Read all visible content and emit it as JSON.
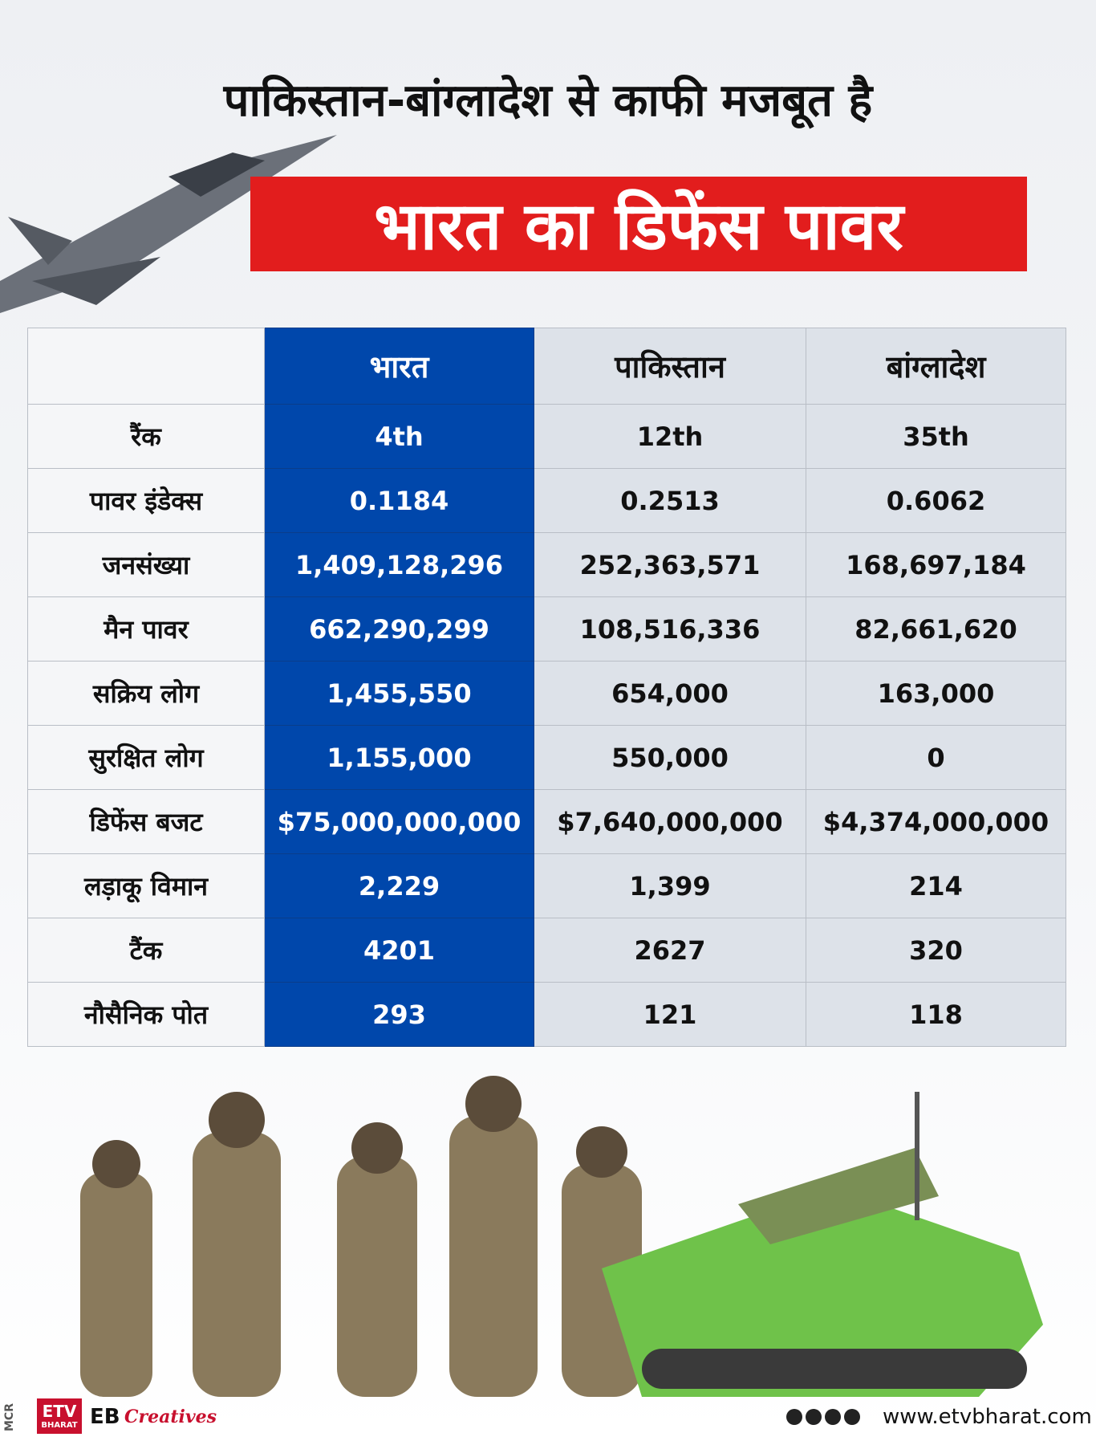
{
  "header": {
    "title_line1": "पाकिस्तान-बांग्लादेश से काफी मजबूत है",
    "title_line2": "भारत का डिफेंस पावर"
  },
  "table": {
    "columns": [
      "",
      "भारत",
      "पाकिस्तान",
      "बांग्लादेश"
    ],
    "rows": [
      [
        "रैंक",
        "4th",
        "12th",
        "35th"
      ],
      [
        "पावर इंडेक्स",
        "0.1184",
        "0.2513",
        "0.6062"
      ],
      [
        "जनसंख्या",
        "1,409,128,296",
        "252,363,571",
        "168,697,184"
      ],
      [
        "मैन पावर",
        "662,290,299",
        "108,516,336",
        "82,661,620"
      ],
      [
        "सक्रिय लोग",
        "1,455,550",
        "654,000",
        "163,000"
      ],
      [
        "सुरक्षित लोग",
        "1,155,000",
        "550,000",
        "0"
      ],
      [
        "डिफेंस बजट",
        "$75,000,000,000",
        "$7,640,000,000",
        "$4,374,000,000"
      ],
      [
        "लड़ाकू विमान",
        "2,229",
        "1,399",
        "214"
      ],
      [
        "टैंक",
        "4201",
        "2627",
        "320"
      ],
      [
        "नौसैनिक पोत",
        "293",
        "121",
        "118"
      ]
    ]
  },
  "footer": {
    "side_tag": "MCR",
    "logo": "ETV",
    "logo_sub": "BHARAT",
    "brand": "EB",
    "brand_script": "Creatives",
    "website": "www.etvbharat.com"
  }
}
